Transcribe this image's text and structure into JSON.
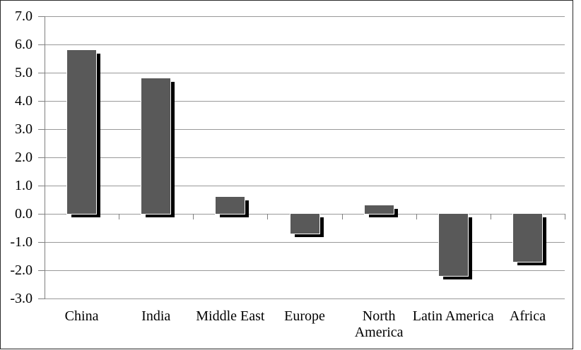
{
  "chart_data": {
    "type": "bar",
    "title": "",
    "xlabel": "",
    "ylabel": "",
    "categories": [
      "China",
      "India",
      "Middle East",
      "Europe",
      "North America",
      "Latin America",
      "Africa"
    ],
    "values": [
      5.8,
      4.8,
      0.6,
      -0.7,
      0.3,
      -2.2,
      -1.7
    ],
    "y_tick_labels": [
      "7.0",
      "6.0",
      "5.0",
      "4.0",
      "3.0",
      "2.0",
      "1.0",
      "0.0",
      "-1.0",
      "-2.0",
      "-3.0"
    ],
    "y_tick_values": [
      7,
      6,
      5,
      4,
      3,
      2,
      1,
      0,
      -1,
      -2,
      -3
    ],
    "ylim": [
      -3.0,
      7.0
    ],
    "grid": "horizontal",
    "legend": "none",
    "bar_style": "3d-drop-shadow",
    "colors": {
      "bar": "#595959",
      "bar_shadow": "#000000",
      "gridline": "#999999",
      "axis": "#808080",
      "text": "#000000",
      "background": "#ffffff"
    }
  }
}
